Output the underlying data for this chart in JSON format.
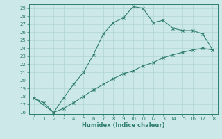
{
  "xlabel": "Humidex (Indice chaleur)",
  "bg_color": "#cce8e8",
  "line_color": "#2e7d6e",
  "grid_color": "#b0d4d4",
  "line1_x": [
    0,
    1,
    2,
    3,
    4,
    5,
    6,
    7,
    8,
    9,
    10,
    11,
    12,
    13,
    14,
    15,
    16,
    17,
    18
  ],
  "line1_y": [
    17.8,
    17.2,
    16.0,
    17.8,
    19.5,
    21.0,
    23.2,
    25.8,
    27.2,
    27.8,
    29.2,
    29.0,
    27.2,
    27.5,
    26.5,
    26.2,
    26.2,
    25.8,
    23.8
  ],
  "line2_x": [
    0,
    2,
    3,
    4,
    5,
    6,
    7,
    8,
    9,
    10,
    11,
    12,
    13,
    14,
    15,
    16,
    17,
    18
  ],
  "line2_y": [
    17.8,
    16.0,
    16.5,
    17.2,
    18.0,
    18.8,
    19.5,
    20.2,
    20.8,
    21.2,
    21.8,
    22.2,
    22.8,
    23.2,
    23.5,
    23.8,
    24.0,
    23.8
  ],
  "xlim": [
    -0.5,
    18.5
  ],
  "ylim": [
    15.8,
    29.5
  ],
  "yticks": [
    16,
    17,
    18,
    19,
    20,
    21,
    22,
    23,
    24,
    25,
    26,
    27,
    28,
    29
  ],
  "xticks": [
    0,
    1,
    2,
    3,
    4,
    5,
    6,
    7,
    8,
    9,
    10,
    11,
    12,
    13,
    14,
    15,
    16,
    17,
    18
  ],
  "tick_labelsize": 5,
  "xlabel_fontsize": 6,
  "marker_size": 3,
  "linewidth": 0.8
}
